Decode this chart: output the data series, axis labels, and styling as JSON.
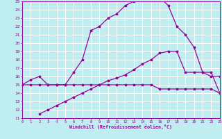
{
  "title": "",
  "xlabel": "Windchill (Refroidissement éolien,°C)",
  "bg_color": "#c0eef0",
  "line_color": "#990099",
  "grid_color": "#ffffff",
  "xmin": 0,
  "xmax": 23,
  "ymin": 11,
  "ymax": 25,
  "line1_x": [
    0,
    1,
    2,
    3,
    4,
    5,
    6,
    7,
    8,
    9,
    10,
    11,
    12,
    13,
    14,
    15,
    16,
    17,
    18,
    19,
    20,
    21,
    22,
    23
  ],
  "line1_y": [
    15,
    15.6,
    16.0,
    15.0,
    15.0,
    15.0,
    16.5,
    18.0,
    21.5,
    22.0,
    23.0,
    23.5,
    24.5,
    25.0,
    25.5,
    25.5,
    25.5,
    24.5,
    22.0,
    21.0,
    19.5,
    16.5,
    16.0,
    16.0
  ],
  "line2_x": [
    0,
    1,
    2,
    3,
    4,
    5,
    6,
    7,
    8,
    9,
    10,
    11,
    12,
    13,
    14,
    15,
    16,
    17,
    18,
    19,
    20,
    21,
    22,
    23
  ],
  "line2_y": [
    15,
    15.0,
    15.0,
    15.0,
    15.0,
    15.0,
    15.0,
    15.0,
    15.0,
    15.0,
    15.0,
    15.0,
    15.0,
    15.0,
    15.0,
    15.0,
    14.5,
    14.5,
    14.5,
    14.5,
    14.5,
    14.5,
    14.5,
    14.0
  ],
  "line3_x": [
    2,
    3,
    4,
    5,
    6,
    7,
    8,
    9,
    10,
    11,
    12,
    13,
    14,
    15,
    16,
    17,
    18,
    19,
    20,
    21,
    22,
    23
  ],
  "line3_y": [
    11.5,
    12.0,
    12.5,
    13.0,
    13.5,
    14.0,
    14.5,
    15.0,
    15.5,
    15.8,
    16.2,
    16.8,
    17.5,
    18.0,
    18.8,
    19.0,
    19.0,
    16.5,
    16.5,
    16.5,
    16.5,
    14.0
  ]
}
